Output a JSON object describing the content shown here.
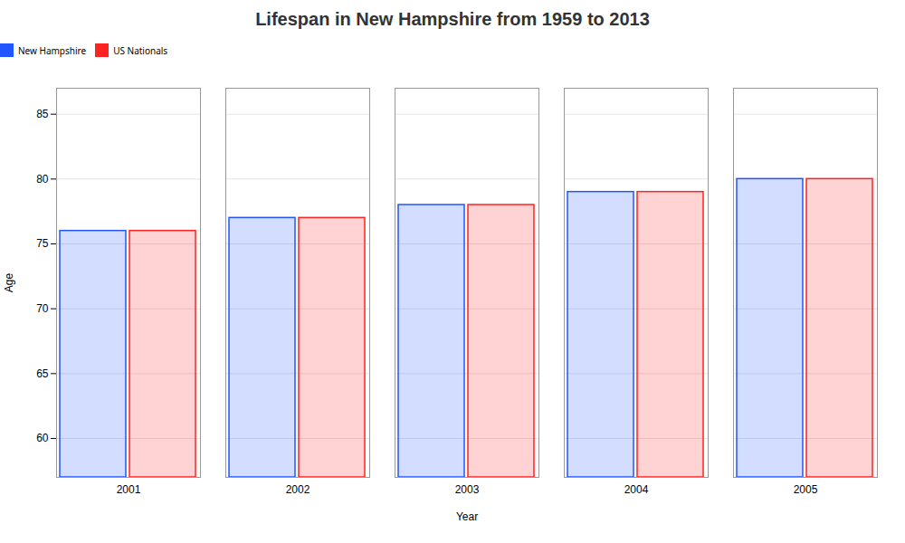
{
  "chart_data": {
    "type": "bar",
    "title": "Lifespan in New Hampshire from 1959 to 2013",
    "x_label": "Year",
    "y_label": "Age",
    "categories": [
      "2001",
      "2002",
      "2003",
      "2004",
      "2005"
    ],
    "series": [
      {
        "name": "New Hampshire",
        "color": "#2255ff",
        "values": [
          76,
          77,
          78,
          79,
          80
        ]
      },
      {
        "name": "US Nationals",
        "color": "#ff2222",
        "values": [
          76,
          77,
          78,
          79,
          80
        ]
      }
    ],
    "ylim": [
      57,
      87
    ],
    "yticks": [
      60,
      65,
      70,
      75,
      80,
      85
    ],
    "grid": true,
    "legend": "top"
  }
}
